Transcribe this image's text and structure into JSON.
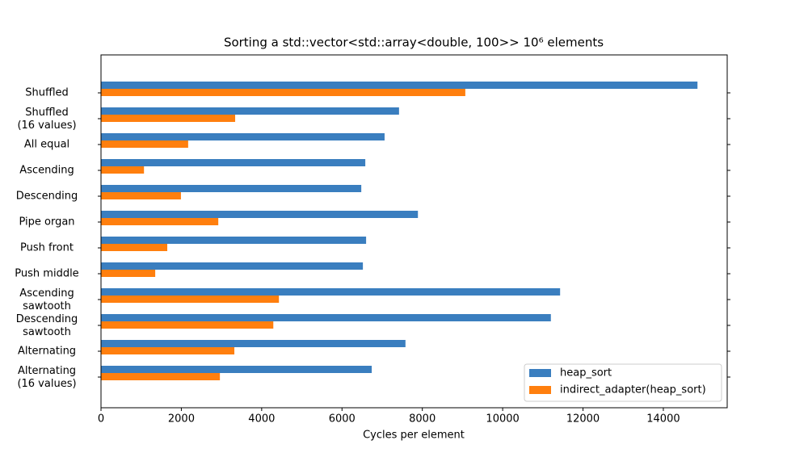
{
  "chart_data": {
    "type": "barh",
    "title": "Sorting a std::vector<std::array<double, 100>> 10⁶ elements",
    "xlabel": "Cycles per element",
    "categories": [
      "Shuffled",
      "Shuffled\n(16 values)",
      "All equal",
      "Ascending",
      "Descending",
      "Pipe organ",
      "Push front",
      "Push middle",
      "Ascending\nsawtooth",
      "Descending\nsawtooth",
      "Alternating",
      "Alternating\n(16 values)"
    ],
    "series": [
      {
        "name": "heap_sort",
        "color": "#3a7ebf",
        "values": [
          14850,
          7420,
          7060,
          6580,
          6480,
          7890,
          6600,
          6520,
          11430,
          11200,
          7580,
          6740
        ]
      },
      {
        "name": "indirect_adapter(heap_sort)",
        "color": "#ff7f0e",
        "values": [
          9070,
          3340,
          2170,
          1070,
          1990,
          2920,
          1650,
          1350,
          4430,
          4290,
          3320,
          2960
        ]
      }
    ],
    "xlim": [
      0,
      15590
    ],
    "xticks": [
      0,
      2000,
      4000,
      6000,
      8000,
      10000,
      12000,
      14000
    ],
    "legend": "lower right"
  }
}
